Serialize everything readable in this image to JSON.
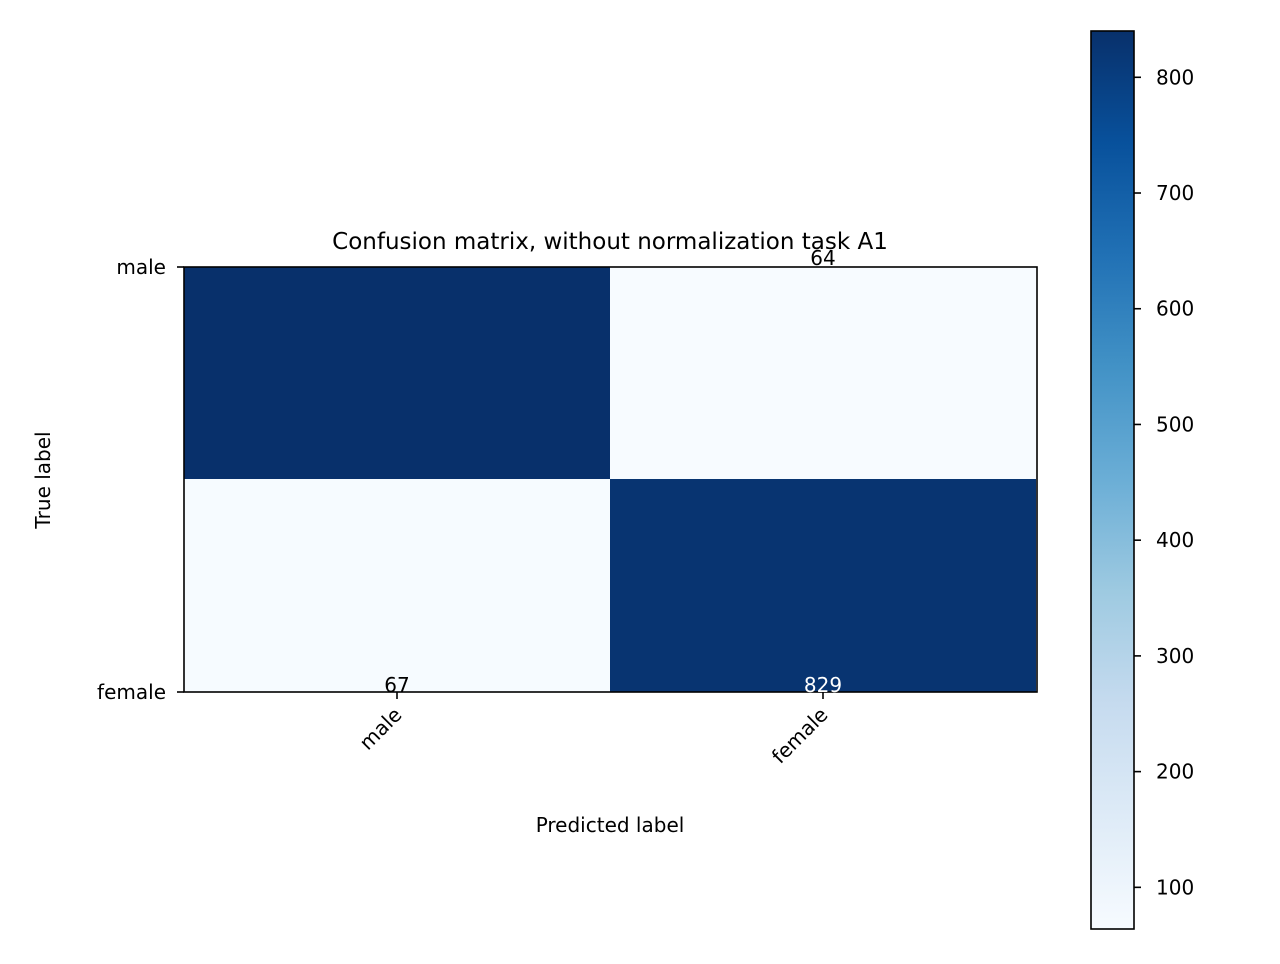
{
  "chart_data": {
    "type": "heatmap",
    "title": "Confusion matrix, without normalization task A1",
    "xlabel": "Predicted label",
    "ylabel": "True label",
    "x_categories": [
      "male",
      "female"
    ],
    "y_categories": [
      "male",
      "female"
    ],
    "values": [
      [
        840,
        64
      ],
      [
        67,
        829
      ]
    ],
    "colormap": "Blues",
    "colorbar": {
      "min": 64,
      "max": 840,
      "ticks": [
        100,
        200,
        300,
        400,
        500,
        600,
        700,
        800
      ]
    },
    "text_color_threshold": 452,
    "grid": false,
    "colors": {
      "low": "#f7fbff",
      "high": "#08306b",
      "text_dark": "#000000",
      "text_light": "#ffffff"
    }
  }
}
